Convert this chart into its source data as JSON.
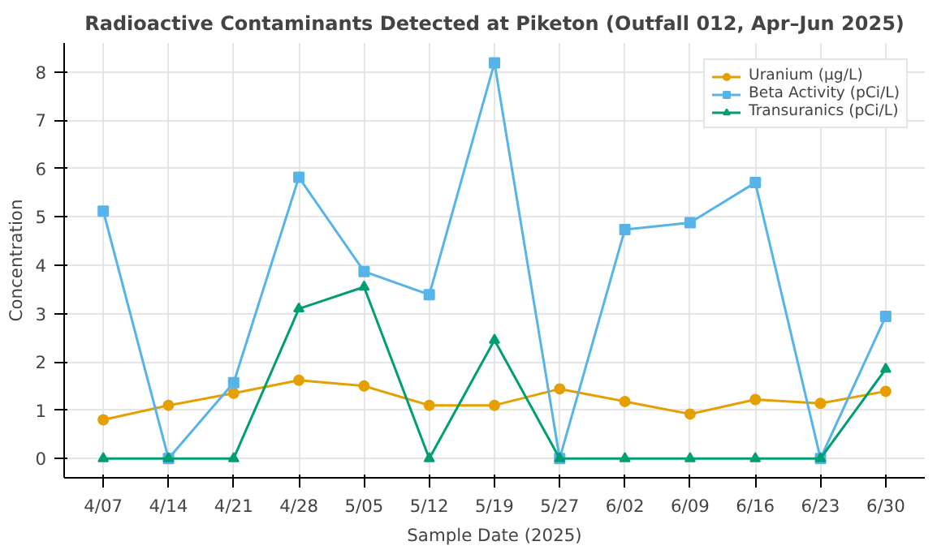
{
  "chart_data": {
    "type": "line",
    "title": "Radioactive Contaminants Detected at Piketon (Outfall 012, Apr–Jun 2025)",
    "xlabel": "Sample Date (2025)",
    "ylabel": "Concentration",
    "categories": [
      "4/07",
      "4/14",
      "4/21",
      "4/28",
      "5/05",
      "5/12",
      "5/19",
      "5/27",
      "6/02",
      "6/09",
      "6/16",
      "6/23",
      "6/30"
    ],
    "series": [
      {
        "name": "Uranium (µg/L)",
        "color": "#e69f00",
        "marker": "circle",
        "values": [
          0.8,
          1.1,
          1.35,
          1.62,
          1.5,
          1.1,
          1.1,
          1.44,
          1.18,
          0.92,
          1.22,
          1.14,
          1.39
        ]
      },
      {
        "name": "Beta Activity (pCi/L)",
        "color": "#56b4e9",
        "marker": "square",
        "values": [
          5.12,
          0,
          1.57,
          5.82,
          3.87,
          3.39,
          8.19,
          0,
          4.74,
          4.88,
          5.71,
          0,
          2.94
        ]
      },
      {
        "name": "Transuranics (pCi/L)",
        "color": "#009e73",
        "marker": "triangle",
        "values": [
          0,
          0,
          0,
          3.1,
          3.55,
          0,
          2.45,
          0,
          0,
          0,
          0,
          0,
          1.85
        ]
      }
    ],
    "ylim": [
      -0.4,
      8.6
    ],
    "yticks": [
      0,
      1,
      2,
      3,
      4,
      5,
      6,
      7,
      8
    ],
    "grid": true,
    "legend": "top right",
    "line_style": "solid"
  }
}
